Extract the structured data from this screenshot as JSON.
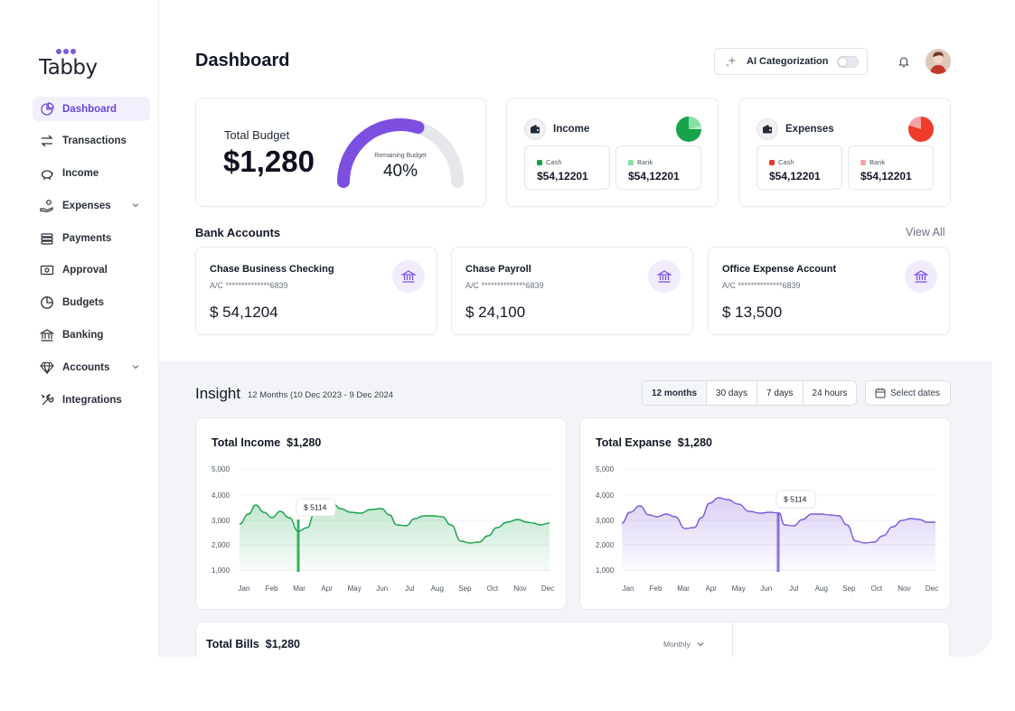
{
  "logo": {
    "text": "Tabby"
  },
  "sidebar": {
    "items": [
      {
        "label": "Dashboard",
        "icon": "pie-chart-icon",
        "active": true
      },
      {
        "label": "Transactions",
        "icon": "transfer-icon"
      },
      {
        "label": "Income",
        "icon": "piggy-bank-icon"
      },
      {
        "label": "Expenses",
        "icon": "hand-coins-icon",
        "expandable": true
      },
      {
        "label": "Payments",
        "icon": "coins-stack-icon"
      },
      {
        "label": "Approval",
        "icon": "cash-icon"
      },
      {
        "label": "Budgets",
        "icon": "pie-icon"
      },
      {
        "label": "Banking",
        "icon": "bank-icon"
      },
      {
        "label": "Accounts",
        "icon": "gem-icon",
        "expandable": true
      },
      {
        "label": "Integrations",
        "icon": "tools-icon"
      }
    ]
  },
  "header": {
    "title": "Dashboard",
    "ai_toggle_label": "AI Categorization",
    "ai_toggle_on": false
  },
  "budget": {
    "title": "Total Budget",
    "amount": "$1,280",
    "gauge_label": "Remaining Budget",
    "gauge_value": "40%",
    "gauge_fraction": 0.4
  },
  "income": {
    "title": "Income",
    "cash_label": "Cash",
    "cash_value": "$54,12201",
    "bank_label": "Bank",
    "bank_value": "$54,12201",
    "colors": {
      "cash": "#16a34a",
      "bank": "#86e0a5"
    }
  },
  "expenses": {
    "title": "Expenses",
    "cash_label": "Cash",
    "cash_value": "$54,12201",
    "bank_label": "Bank",
    "bank_value": "$54,12201",
    "colors": {
      "cash": "#ef3b2c",
      "bank": "#f6a3a3"
    }
  },
  "bank_accounts": {
    "title": "Bank Accounts",
    "view_all": "View All",
    "accounts": [
      {
        "name": "Chase Business Checking",
        "account": "A/C **************6839",
        "balance": "$ 54,1204"
      },
      {
        "name": "Chase Payroll",
        "account": "A/C **************6839",
        "balance": "$ 24,100"
      },
      {
        "name": "Office Expense Account",
        "account": "A/C **************6839",
        "balance": "$ 13,500"
      }
    ]
  },
  "insight": {
    "title": "Insight",
    "range": "12 Months (10 Dec 2023  - 9 Dec 2024",
    "ranges": [
      "12 months",
      "30 days",
      "7 days",
      "24 hours"
    ],
    "active_range": 0,
    "select_dates": "Select dates"
  },
  "chart_data": [
    {
      "type": "area",
      "title": "Total Income",
      "title_value": "$1,280",
      "categories": [
        "Jan",
        "Feb",
        "Mar",
        "Apr",
        "May",
        "Jun",
        "Jul",
        "Aug",
        "Sep",
        "Oct",
        "Nov",
        "Dec"
      ],
      "y_ticks": [
        "5,000",
        "4,000",
        "3,000",
        "2,000",
        "1,000"
      ],
      "ylim": [
        1000,
        5000
      ],
      "tooltip": "$ 5114",
      "color": "#16a34a"
    },
    {
      "type": "area",
      "title": "Total Expanse",
      "title_value": "$1,280",
      "categories": [
        "Jan",
        "Feb",
        "Mar",
        "Apr",
        "May",
        "Jun",
        "Jul",
        "Aug",
        "Sep",
        "Oct",
        "Nov",
        "Dec"
      ],
      "y_ticks": [
        "5,000",
        "4,000",
        "3,000",
        "2,000",
        "1,000"
      ],
      "ylim": [
        1000,
        5000
      ],
      "tooltip": "$ 5114",
      "color": "#7c5ad8"
    }
  ],
  "bills": {
    "title": "Total Bills",
    "title_value": "$1,280",
    "period": "Monthly"
  }
}
